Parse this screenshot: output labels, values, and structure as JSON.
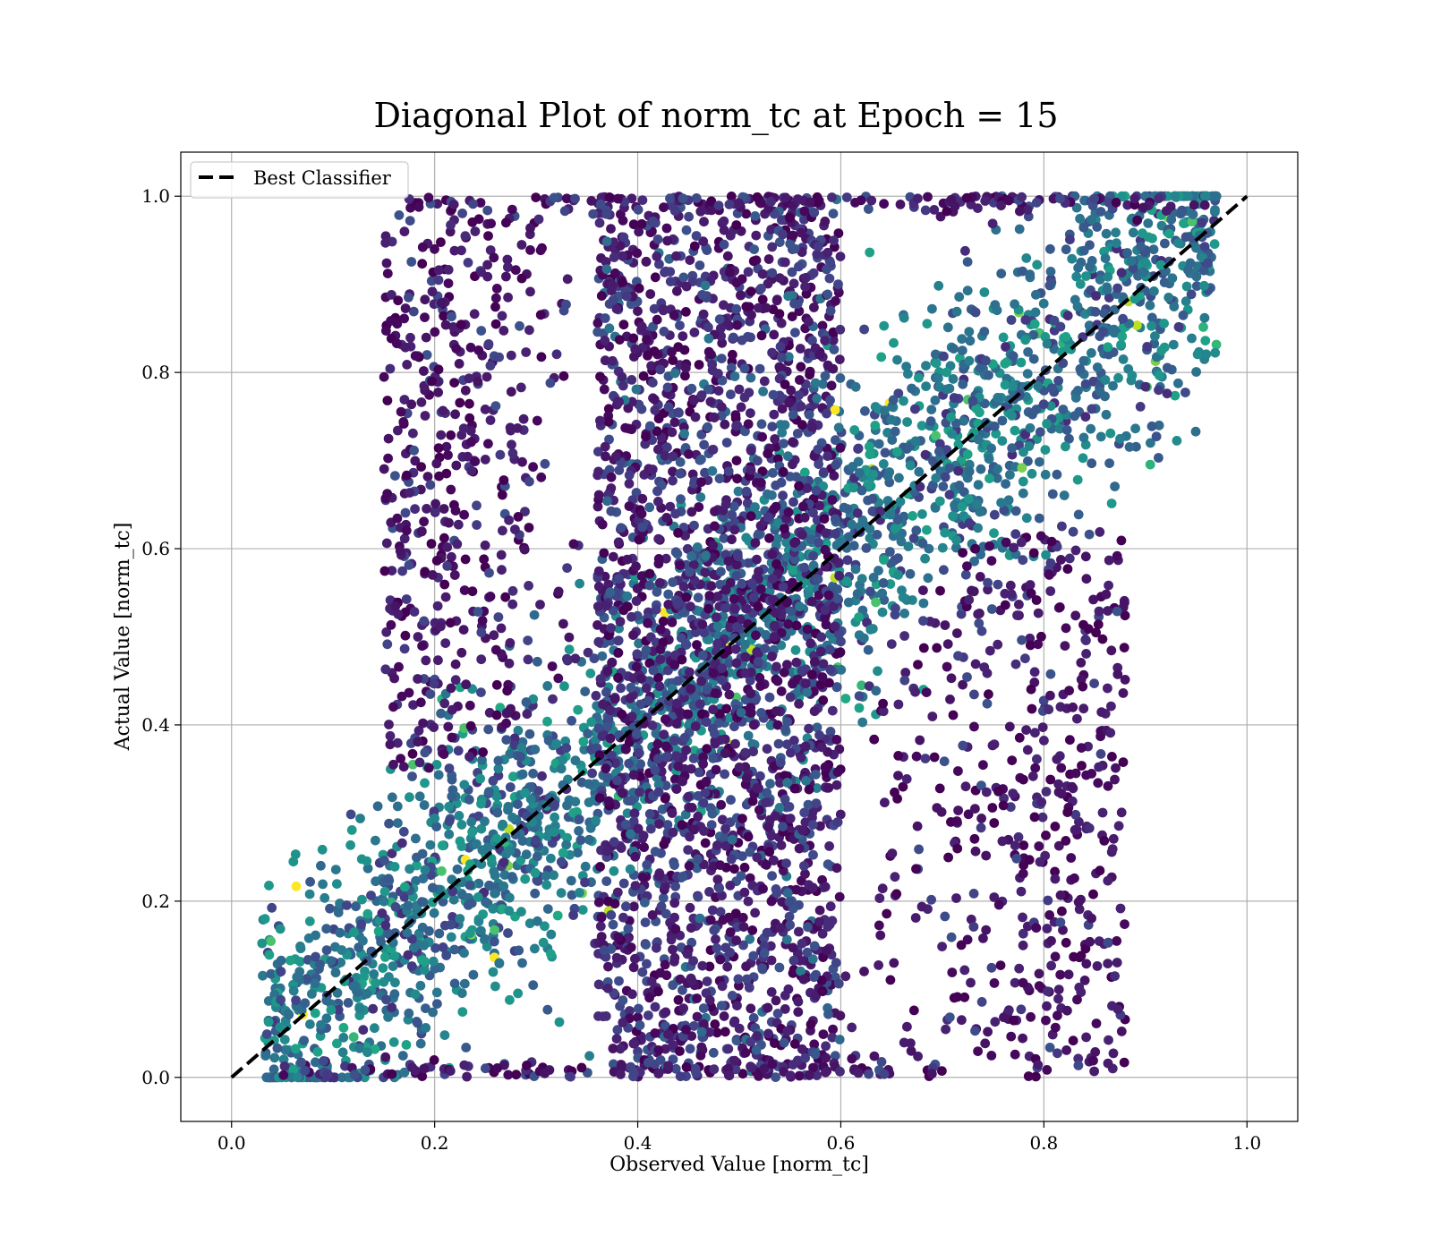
{
  "chart_data": {
    "type": "scatter",
    "title": "Diagonal Plot of norm_tc at Epoch = 15",
    "xlabel": "Observed Value [norm_tc]",
    "ylabel": "Actual Value [norm_tc]",
    "xlim": [
      -0.05,
      1.05
    ],
    "ylim": [
      -0.05,
      1.05
    ],
    "x_ticks": [
      "0.0",
      "0.2",
      "0.4",
      "0.6",
      "0.8",
      "1.0"
    ],
    "y_ticks": [
      "0.0",
      "0.2",
      "0.4",
      "0.6",
      "0.8",
      "1.0"
    ],
    "grid": true,
    "legend_position": "top-left",
    "colormap": "viridis",
    "reference_line": {
      "name": "Best Classifier",
      "style": "dashed",
      "color": "#000000",
      "x": [
        0.0,
        1.0
      ],
      "y": [
        0.0,
        1.0
      ]
    },
    "point_regions": [
      {
        "shape": "band",
        "x_range": [
          0.03,
          0.97
        ],
        "y_at_x_min": [
          0.0,
          0.06
        ],
        "y_at_x_max": [
          0.86,
          1.0
        ],
        "density": "high",
        "color": "teal-blue"
      },
      {
        "shape": "rect",
        "x_range": [
          0.36,
          0.6
        ],
        "y_range": [
          0.0,
          1.0
        ],
        "density": "high",
        "color": "dark-purple"
      },
      {
        "shape": "rect",
        "x_range": [
          0.15,
          0.36
        ],
        "y_range": [
          0.35,
          1.0
        ],
        "density": "sparse",
        "color": "dark-purple"
      },
      {
        "shape": "rect",
        "x_range": [
          0.6,
          0.88
        ],
        "y_range": [
          0.0,
          0.62
        ],
        "density": "sparse",
        "color": "dark-purple"
      }
    ]
  }
}
